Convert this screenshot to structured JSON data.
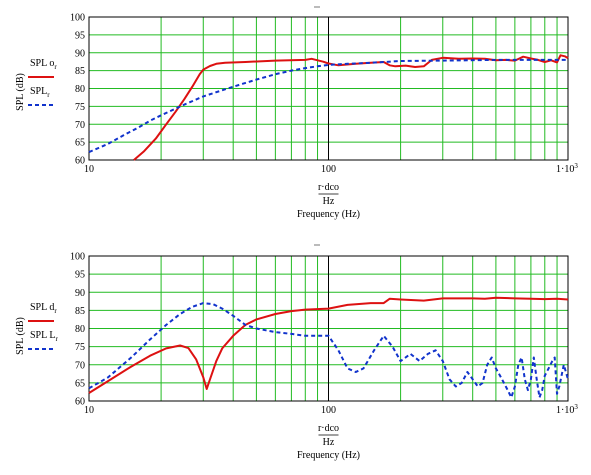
{
  "chart_data": [
    {
      "type": "line",
      "x_scale": "log",
      "xlim": [
        10,
        1000
      ],
      "ylim": [
        60,
        100
      ],
      "grid": true,
      "x_tick_labels": [
        "10",
        "100",
        "1·10³"
      ],
      "y_tick_labels": [
        "60",
        "65",
        "70",
        "75",
        "80",
        "85",
        "90",
        "95",
        "100"
      ],
      "xlabel_lines": [
        "r·dco",
        "Hz",
        "Frequency (Hz)"
      ],
      "ylabel": "SPL (dB)",
      "legend": [
        {
          "label": "SPL o",
          "subscript": "r",
          "color": "#dd1111",
          "dash": "solid"
        },
        {
          "label": "SPL",
          "subscript": "r",
          "color": "#1133cc",
          "dash": "dashed"
        }
      ],
      "series": [
        {
          "color": "#dd1111",
          "points": [
            [
              15.4,
              60
            ],
            [
              17,
              62.5
            ],
            [
              19,
              66
            ],
            [
              21,
              70
            ],
            [
              23,
              73.5
            ],
            [
              25,
              77
            ],
            [
              27,
              80.5
            ],
            [
              29,
              84
            ],
            [
              30,
              85.3
            ],
            [
              32,
              86.3
            ],
            [
              34,
              86.9
            ],
            [
              37,
              87.2
            ],
            [
              45,
              87.4
            ],
            [
              60,
              87.8
            ],
            [
              80,
              88
            ],
            [
              85,
              88.3
            ],
            [
              95,
              87.5
            ],
            [
              100,
              87
            ],
            [
              110,
              86.5
            ],
            [
              130,
              86.9
            ],
            [
              150,
              87.2
            ],
            [
              170,
              87.4
            ],
            [
              180,
              86.5
            ],
            [
              190,
              86.2
            ],
            [
              210,
              86.4
            ],
            [
              230,
              86
            ],
            [
              250,
              86.2
            ],
            [
              270,
              88
            ],
            [
              300,
              88.6
            ],
            [
              350,
              88.3
            ],
            [
              400,
              88.4
            ],
            [
              450,
              88.3
            ],
            [
              500,
              87.9
            ],
            [
              550,
              88
            ],
            [
              600,
              87.8
            ],
            [
              650,
              88.9
            ],
            [
              700,
              88.4
            ],
            [
              750,
              88
            ],
            [
              800,
              87.4
            ],
            [
              850,
              87.9
            ],
            [
              900,
              87.3
            ],
            [
              930,
              89.3
            ],
            [
              970,
              89
            ],
            [
              1000,
              88.5
            ]
          ]
        },
        {
          "color": "#1133cc",
          "points": [
            [
              10,
              62.2
            ],
            [
              12,
              64.5
            ],
            [
              14,
              67
            ],
            [
              16,
              69
            ],
            [
              18,
              71
            ],
            [
              20,
              72.5
            ],
            [
              25,
              75.5
            ],
            [
              30,
              77.8
            ],
            [
              40,
              80.5
            ],
            [
              50,
              82.5
            ],
            [
              60,
              84
            ],
            [
              70,
              85
            ],
            [
              80,
              85.7
            ],
            [
              90,
              86.2
            ],
            [
              100,
              86.6
            ],
            [
              120,
              86.9
            ],
            [
              150,
              87.2
            ],
            [
              200,
              87.7
            ],
            [
              300,
              87.8
            ],
            [
              500,
              88
            ],
            [
              700,
              88
            ],
            [
              1000,
              88
            ]
          ]
        }
      ]
    },
    {
      "type": "line",
      "x_scale": "log",
      "xlim": [
        10,
        1000
      ],
      "ylim": [
        60,
        100
      ],
      "grid": true,
      "x_tick_labels": [
        "10",
        "100",
        "1·10³"
      ],
      "y_tick_labels": [
        "60",
        "65",
        "70",
        "75",
        "80",
        "85",
        "90",
        "95",
        "100"
      ],
      "xlabel_lines": [
        "r·dco",
        "Hz",
        "Frequency (Hz)"
      ],
      "ylabel": "SPL (dB)",
      "legend": [
        {
          "label": "SPL d",
          "subscript": "r",
          "color": "#dd1111",
          "dash": "solid"
        },
        {
          "label": "SPL L",
          "subscript": "r",
          "color": "#1133cc",
          "dash": "dashed"
        }
      ],
      "series": [
        {
          "color": "#dd1111",
          "points": [
            [
              10,
              62.2
            ],
            [
              12,
              65.5
            ],
            [
              15,
              69.5
            ],
            [
              18,
              72.5
            ],
            [
              21,
              74.5
            ],
            [
              24,
              75.3
            ],
            [
              26,
              74.6
            ],
            [
              28,
              71.5
            ],
            [
              30,
              66.5
            ],
            [
              31,
              63.3
            ],
            [
              32,
              66
            ],
            [
              34,
              71
            ],
            [
              36,
              74.5
            ],
            [
              40,
              78
            ],
            [
              45,
              81
            ],
            [
              50,
              82.5
            ],
            [
              60,
              84
            ],
            [
              70,
              84.8
            ],
            [
              80,
              85.2
            ],
            [
              100,
              85.5
            ],
            [
              120,
              86.5
            ],
            [
              150,
              87
            ],
            [
              170,
              87
            ],
            [
              180,
              88.2
            ],
            [
              200,
              88
            ],
            [
              250,
              87.7
            ],
            [
              300,
              88.3
            ],
            [
              400,
              88.3
            ],
            [
              450,
              88.2
            ],
            [
              500,
              88.5
            ],
            [
              600,
              88.3
            ],
            [
              700,
              88.2
            ],
            [
              800,
              88.1
            ],
            [
              900,
              88.2
            ],
            [
              1000,
              88
            ]
          ]
        },
        {
          "color": "#1133cc",
          "points": [
            [
              10,
              63.5
            ],
            [
              12,
              66.5
            ],
            [
              15,
              72
            ],
            [
              18,
              77
            ],
            [
              21,
              81
            ],
            [
              24,
              84
            ],
            [
              27,
              86
            ],
            [
              30,
              87
            ],
            [
              33,
              86.7
            ],
            [
              36,
              85.5
            ],
            [
              40,
              83.5
            ],
            [
              45,
              81
            ],
            [
              50,
              80
            ],
            [
              60,
              79
            ],
            [
              70,
              78.5
            ],
            [
              80,
              78
            ],
            [
              100,
              78
            ],
            [
              110,
              74
            ],
            [
              120,
              69
            ],
            [
              130,
              68
            ],
            [
              140,
              69
            ],
            [
              155,
              74
            ],
            [
              170,
              78
            ],
            [
              185,
              75
            ],
            [
              200,
              71
            ],
            [
              220,
              73
            ],
            [
              240,
              71
            ],
            [
              260,
              73
            ],
            [
              280,
              74
            ],
            [
              300,
              71
            ],
            [
              320,
              66
            ],
            [
              340,
              64
            ],
            [
              360,
              65
            ],
            [
              380,
              68
            ],
            [
              400,
              66
            ],
            [
              420,
              64
            ],
            [
              440,
              65
            ],
            [
              460,
              70
            ],
            [
              480,
              72
            ],
            [
              500,
              69
            ],
            [
              520,
              67
            ],
            [
              540,
              65
            ],
            [
              560,
              63
            ],
            [
              580,
              61
            ],
            [
              600,
              64
            ],
            [
              620,
              70
            ],
            [
              640,
              72
            ],
            [
              660,
              66
            ],
            [
              680,
              63
            ],
            [
              700,
              66
            ],
            [
              720,
              72
            ],
            [
              740,
              66
            ],
            [
              760,
              61
            ],
            [
              780,
              63
            ],
            [
              800,
              67
            ],
            [
              830,
              69
            ],
            [
              860,
              71
            ],
            [
              880,
              72
            ],
            [
              900,
              62
            ],
            [
              920,
              64
            ],
            [
              960,
              70
            ],
            [
              1000,
              66
            ]
          ]
        }
      ]
    }
  ]
}
